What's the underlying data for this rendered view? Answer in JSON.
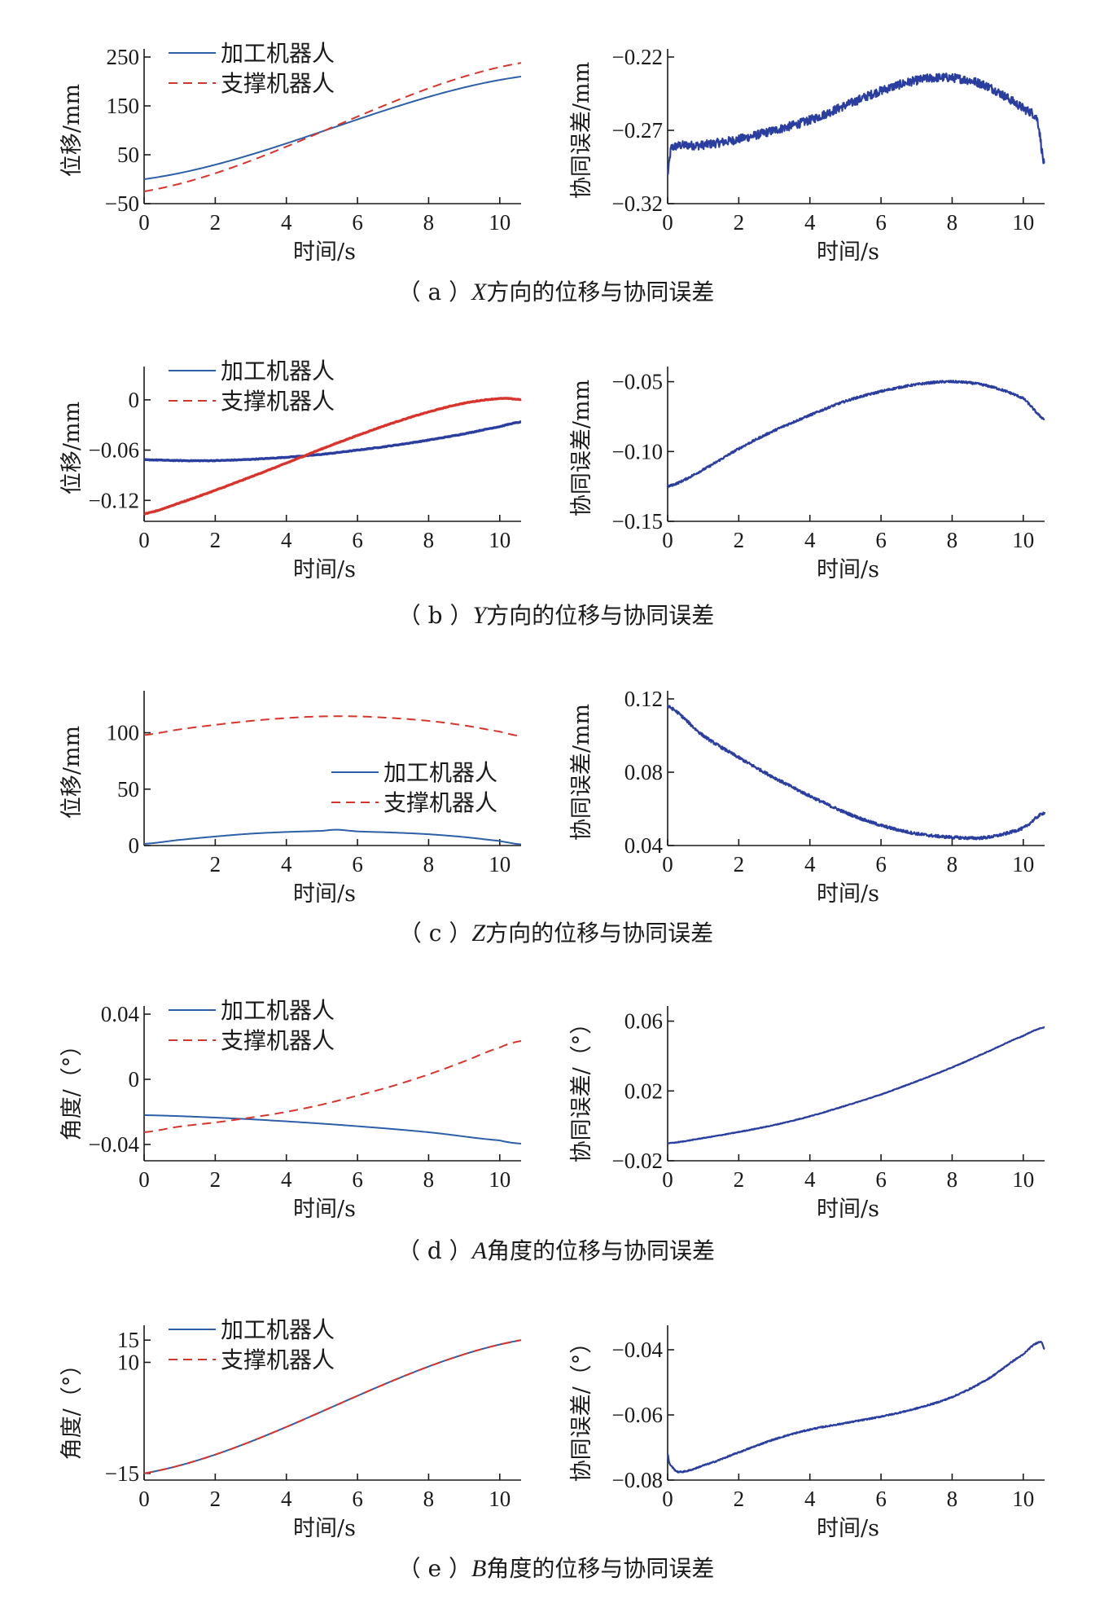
{
  "colors": {
    "solid": "#2c5fa8",
    "dashed": "#d9342b",
    "error": "#2a3ea0",
    "axis": "#1a1a1a"
  },
  "legend_labels": [
    "加工机器人",
    "支撑机器人"
  ],
  "xlabel": "时间/s",
  "captions": [
    {
      "prefix": "（ a ）",
      "letter": "X",
      "text": "方向的位移与协同误差"
    },
    {
      "prefix": "（ b ）",
      "letter": "Y",
      "text": "方向的位移与协同误差"
    },
    {
      "prefix": "（ c ）",
      "letter": "Z",
      "text": "方向的位移与协同误差"
    },
    {
      "prefix": "（ d ）",
      "letter": "A",
      "text": "角度的位移与协同误差"
    },
    {
      "prefix": "（ e ）",
      "letter": "B",
      "text": "角度的位移与协同误差"
    }
  ],
  "chart_data": [
    {
      "id": "a-left",
      "type": "line",
      "xlabel": "时间/s",
      "ylabel": "位移/mm",
      "xlim": [
        0,
        10.6
      ],
      "ylim": [
        -50,
        250
      ],
      "xticks": [
        0,
        2,
        4,
        6,
        8,
        10
      ],
      "xtick_labels": [
        "0",
        "2",
        "4",
        "6",
        "8",
        "10"
      ],
      "yticks": [
        -50,
        50,
        150,
        250
      ],
      "ytick_labels": [
        "−50",
        "50",
        "150",
        "250"
      ],
      "legend": "top-left",
      "series": [
        {
          "name": "加工机器人",
          "style": "solid",
          "x": [
            0,
            10.6
          ],
          "y": [
            0,
            210
          ]
        },
        {
          "name": "支撑机器人",
          "style": "dashed",
          "x": [
            0,
            10.6
          ],
          "y": [
            -25,
            238
          ]
        }
      ]
    },
    {
      "id": "a-right",
      "type": "line",
      "xlabel": "时间/s",
      "ylabel": "协同误差/mm",
      "xlim": [
        0,
        10.6
      ],
      "ylim": [
        -0.32,
        -0.22
      ],
      "xticks": [
        0,
        2,
        4,
        6,
        8,
        10
      ],
      "xtick_labels": [
        "0",
        "2",
        "4",
        "6",
        "8",
        "10"
      ],
      "yticks": [
        -0.32,
        -0.27,
        -0.22
      ],
      "ytick_labels": [
        "−0.32",
        "−0.27",
        "−0.22"
      ],
      "series": [
        {
          "name": "",
          "style": "noisy",
          "noise": 0.003,
          "x": [
            0,
            0.1,
            1,
            2,
            3,
            4,
            5,
            6,
            7,
            7.8,
            8.5,
            9,
            9.5,
            10,
            10.4,
            10.6
          ],
          "y": [
            -0.3,
            -0.282,
            -0.28,
            -0.276,
            -0.27,
            -0.263,
            -0.253,
            -0.243,
            -0.236,
            -0.234,
            -0.236,
            -0.24,
            -0.247,
            -0.255,
            -0.263,
            -0.295
          ]
        }
      ]
    },
    {
      "id": "b-left",
      "type": "line",
      "xlabel": "时间/s",
      "ylabel": "位移/mm",
      "xlim": [
        0,
        10.6
      ],
      "ylim": [
        -0.145,
        0.03
      ],
      "xticks": [
        0,
        2,
        4,
        6,
        8,
        10
      ],
      "xtick_labels": [
        "0",
        "2",
        "4",
        "6",
        "8",
        "10"
      ],
      "yticks": [
        -0.12,
        -0.06,
        0
      ],
      "ytick_labels": [
        "−0.12",
        "−0.06",
        "0"
      ],
      "legend": "top-left",
      "series": [
        {
          "name": "加工机器人",
          "style": "thick",
          "color_key": "error",
          "x": [
            0,
            1,
            2,
            3,
            4,
            5,
            6,
            7,
            8,
            9,
            10,
            10.6
          ],
          "y": [
            -0.0715,
            -0.0725,
            -0.0725,
            -0.071,
            -0.0685,
            -0.065,
            -0.06,
            -0.0545,
            -0.048,
            -0.0405,
            -0.032,
            -0.0265
          ]
        },
        {
          "name": "支撑机器人",
          "style": "thick",
          "color_key": "dashed",
          "x": [
            0,
            1,
            2,
            3,
            4,
            5,
            6,
            7,
            8,
            9,
            10,
            10.6
          ],
          "y": [
            -0.136,
            -0.123,
            -0.108,
            -0.092,
            -0.0755,
            -0.0585,
            -0.0425,
            -0.0275,
            -0.0145,
            -0.004,
            0.0015,
            0.0005
          ]
        }
      ]
    },
    {
      "id": "b-right",
      "type": "line",
      "xlabel": "时间/s",
      "ylabel": "协同误差/mm",
      "xlim": [
        0,
        10.6
      ],
      "ylim": [
        -0.15,
        -0.045
      ],
      "xticks": [
        0,
        2,
        4,
        6,
        8,
        10
      ],
      "xtick_labels": [
        "0",
        "2",
        "4",
        "6",
        "8",
        "10"
      ],
      "yticks": [
        -0.15,
        -0.1,
        -0.05
      ],
      "ytick_labels": [
        "−0.15",
        "−0.10",
        "−0.05"
      ],
      "series": [
        {
          "name": "",
          "style": "noisy",
          "noise": 0.0008,
          "x": [
            0,
            1,
            2,
            3,
            4,
            5,
            6,
            7,
            8,
            9,
            10,
            10.6
          ],
          "y": [
            -0.125,
            -0.113,
            -0.098,
            -0.085,
            -0.074,
            -0.064,
            -0.057,
            -0.052,
            -0.05,
            -0.053,
            -0.062,
            -0.077
          ]
        }
      ]
    },
    {
      "id": "c-left",
      "type": "line",
      "xlabel": "时间/s",
      "ylabel": "位移/mm",
      "xlim": [
        0,
        10.6
      ],
      "ylim": [
        0,
        130
      ],
      "xticks": [
        2,
        4,
        6,
        8,
        10
      ],
      "xtick_labels": [
        "2",
        "4",
        "6",
        "8",
        "10"
      ],
      "yticks": [
        0,
        50,
        100
      ],
      "ytick_labels": [
        "0",
        "50",
        "100"
      ],
      "legend": "center-right",
      "series": [
        {
          "name": "加工机器人",
          "style": "solid",
          "x": [
            0,
            1,
            2,
            3,
            4,
            5,
            5.4,
            6,
            7,
            8,
            9,
            10,
            10.6
          ],
          "y": [
            1.5,
            5,
            8,
            10.5,
            12,
            13,
            14,
            12.5,
            11.5,
            10,
            7.5,
            4,
            1
          ]
        },
        {
          "name": "支撑机器人",
          "style": "dashed",
          "x": [
            0,
            1,
            2,
            3,
            4,
            5,
            6,
            7,
            8,
            9,
            10,
            10.6
          ],
          "y": [
            98,
            103,
            107,
            110.5,
            113,
            114.5,
            114.5,
            113,
            110.5,
            106.5,
            101,
            97
          ]
        }
      ]
    },
    {
      "id": "c-right",
      "type": "line",
      "xlabel": "时间/s",
      "ylabel": "协同误差/mm",
      "xlim": [
        0,
        10.6
      ],
      "ylim": [
        0.04,
        0.12
      ],
      "xticks": [
        0,
        2,
        4,
        6,
        8,
        10
      ],
      "xtick_labels": [
        "0",
        "2",
        "4",
        "6",
        "8",
        "10"
      ],
      "yticks": [
        0.04,
        0.08,
        0.12
      ],
      "ytick_labels": [
        "0.04",
        "0.08",
        "0.12"
      ],
      "series": [
        {
          "name": "",
          "style": "noisy",
          "noise": 0.0008,
          "x": [
            0,
            1,
            2,
            3,
            4,
            5,
            6,
            7,
            8,
            9,
            10,
            10.6
          ],
          "y": [
            0.116,
            0.1,
            0.088,
            0.077,
            0.067,
            0.058,
            0.051,
            0.0465,
            0.0445,
            0.0445,
            0.0495,
            0.058
          ]
        }
      ]
    },
    {
      "id": "d-left",
      "type": "line",
      "xlabel": "时间/s",
      "ylabel": "角度/（°）",
      "xlim": [
        0,
        10.6
      ],
      "ylim": [
        -0.05,
        0.04
      ],
      "xticks": [
        0,
        2,
        4,
        6,
        8,
        10
      ],
      "xtick_labels": [
        "0",
        "2",
        "4",
        "6",
        "8",
        "10"
      ],
      "yticks": [
        -0.04,
        0,
        0.04
      ],
      "ytick_labels": [
        "−0.04",
        "0",
        "0.04"
      ],
      "legend": "top-left",
      "series": [
        {
          "name": "加工机器人",
          "style": "solid",
          "x": [
            0,
            2,
            4,
            6,
            8,
            10,
            10.6
          ],
          "y": [
            -0.022,
            -0.0235,
            -0.0258,
            -0.0288,
            -0.0325,
            -0.0375,
            -0.0395
          ]
        },
        {
          "name": "支撑机器人",
          "style": "dashed",
          "x": [
            0,
            1,
            2,
            3,
            4,
            5,
            6,
            7,
            8,
            9,
            10,
            10.6
          ],
          "y": [
            -0.0325,
            -0.029,
            -0.0265,
            -0.0235,
            -0.02,
            -0.0155,
            -0.01,
            -0.004,
            0.003,
            0.011,
            0.0195,
            0.0235
          ]
        }
      ]
    },
    {
      "id": "d-right",
      "type": "line",
      "xlabel": "时间/s",
      "ylabel": "协同误差/（°）",
      "xlim": [
        0,
        10.6
      ],
      "ylim": [
        -0.02,
        0.064
      ],
      "xticks": [
        0,
        2,
        4,
        6,
        8,
        10
      ],
      "xtick_labels": [
        "0",
        "2",
        "4",
        "6",
        "8",
        "10"
      ],
      "yticks": [
        -0.02,
        0.02,
        0.06
      ],
      "ytick_labels": [
        "−0.02",
        "0.02",
        "0.06"
      ],
      "series": [
        {
          "name": "",
          "style": "noisy",
          "noise": 0.0002,
          "x": [
            0,
            1,
            2,
            3,
            4,
            5,
            6,
            7,
            8,
            9,
            10,
            10.6
          ],
          "y": [
            -0.01,
            -0.007,
            -0.0035,
            0.0005,
            0.0055,
            0.0115,
            0.018,
            0.0255,
            0.0335,
            0.0425,
            0.0515,
            0.0565
          ]
        }
      ]
    },
    {
      "id": "e-left",
      "type": "line",
      "xlabel": "时间/s",
      "ylabel": "角度/（°）",
      "xlim": [
        0,
        10.6
      ],
      "ylim": [
        -16.5,
        16.5
      ],
      "xticks": [
        0,
        2,
        4,
        6,
        8,
        10
      ],
      "xtick_labels": [
        "0",
        "2",
        "4",
        "6",
        "8",
        "10"
      ],
      "yticks": [
        -15,
        10,
        15
      ],
      "ytick_labels": [
        "−15",
        "10",
        "15"
      ],
      "legend": "top-left",
      "series": [
        {
          "name": "加工机器人",
          "style": "solid",
          "x": [
            0,
            10.6
          ],
          "y": [
            -15,
            15
          ]
        },
        {
          "name": "支撑机器人",
          "style": "dashed",
          "x": [
            0,
            10.6
          ],
          "y": [
            -15,
            15
          ]
        }
      ]
    },
    {
      "id": "e-right",
      "type": "line",
      "xlabel": "时间/s",
      "ylabel": "协同误差/（°）",
      "xlim": [
        0,
        10.6
      ],
      "ylim": [
        -0.08,
        -0.035
      ],
      "xticks": [
        0,
        2,
        4,
        6,
        8,
        10
      ],
      "xtick_labels": [
        "0",
        "2",
        "4",
        "6",
        "8",
        "10"
      ],
      "yticks": [
        -0.08,
        -0.06,
        -0.04
      ],
      "ytick_labels": [
        "−0.08",
        "−0.06",
        "−0.04"
      ],
      "series": [
        {
          "name": "",
          "style": "noisy",
          "noise": 0.0002,
          "x": [
            0,
            0.05,
            0.3,
            1,
            2,
            3,
            4,
            5,
            6,
            7,
            8,
            9,
            10,
            10.5,
            10.6
          ],
          "y": [
            -0.072,
            -0.075,
            -0.0775,
            -0.0755,
            -0.0715,
            -0.0675,
            -0.0645,
            -0.0625,
            -0.0605,
            -0.058,
            -0.0545,
            -0.049,
            -0.0415,
            -0.0375,
            -0.04
          ]
        }
      ]
    }
  ]
}
